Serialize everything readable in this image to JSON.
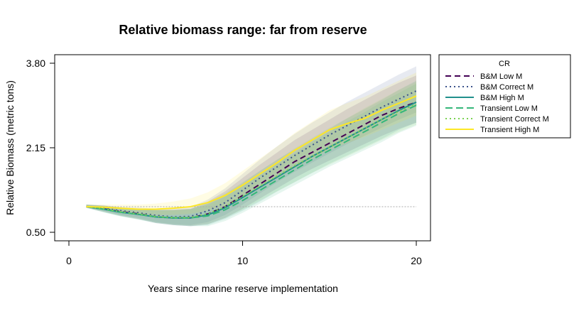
{
  "chart_data": {
    "type": "line",
    "title": "Relative biomass range: far from reserve",
    "xlabel": "Years since marine reserve implementation",
    "ylabel": "Relative Biomass (metric tons)",
    "xlim": [
      0,
      20
    ],
    "ylim": [
      0.5,
      3.8
    ],
    "x_ticks": [
      "0",
      "10",
      "20"
    ],
    "y_ticks": [
      "0.50",
      "2.15",
      "3.80"
    ],
    "reference_line": 1.0,
    "grid": false,
    "legend": {
      "title": "CR",
      "placement": "outside-right"
    },
    "x": [
      1,
      2,
      3,
      4,
      5,
      6,
      7,
      8,
      9,
      10,
      11,
      12,
      13,
      14,
      15,
      16,
      17,
      18,
      19,
      20
    ],
    "series": [
      {
        "name": "B&M Low M",
        "color": "#440154",
        "dash": "dashed",
        "values": [
          1.0,
          0.96,
          0.9,
          0.86,
          0.8,
          0.78,
          0.78,
          0.86,
          1.0,
          1.22,
          1.44,
          1.66,
          1.88,
          2.06,
          2.24,
          2.42,
          2.6,
          2.78,
          2.92,
          3.04
        ],
        "lower": [
          0.98,
          0.9,
          0.82,
          0.76,
          0.68,
          0.64,
          0.62,
          0.66,
          0.78,
          0.96,
          1.16,
          1.36,
          1.56,
          1.74,
          1.9,
          2.06,
          2.22,
          2.38,
          2.52,
          2.64
        ],
        "upper": [
          1.04,
          1.02,
          0.98,
          0.96,
          0.94,
          0.94,
          0.96,
          1.1,
          1.3,
          1.56,
          1.82,
          2.06,
          2.3,
          2.5,
          2.7,
          2.9,
          3.08,
          3.26,
          3.42,
          3.56
        ]
      },
      {
        "name": "B&M Correct M",
        "color": "#3b528b",
        "dash": "dotted",
        "values": [
          1.0,
          0.97,
          0.92,
          0.88,
          0.83,
          0.8,
          0.81,
          0.92,
          1.08,
          1.32,
          1.56,
          1.78,
          2.0,
          2.2,
          2.4,
          2.58,
          2.76,
          2.94,
          3.1,
          3.26
        ],
        "lower": [
          0.98,
          0.92,
          0.84,
          0.78,
          0.7,
          0.66,
          0.64,
          0.7,
          0.84,
          1.04,
          1.26,
          1.48,
          1.68,
          1.86,
          2.04,
          2.22,
          2.38,
          2.54,
          2.7,
          2.84
        ],
        "upper": [
          1.04,
          1.03,
          0.99,
          0.98,
          0.96,
          0.96,
          0.99,
          1.14,
          1.36,
          1.64,
          1.92,
          2.18,
          2.42,
          2.64,
          2.84,
          3.04,
          3.22,
          3.4,
          3.58,
          3.74
        ]
      },
      {
        "name": "B&M High M",
        "color": "#21908c",
        "dash": "solid",
        "values": [
          1.0,
          0.95,
          0.89,
          0.85,
          0.8,
          0.78,
          0.78,
          0.84,
          0.98,
          1.18,
          1.38,
          1.58,
          1.78,
          1.98,
          2.16,
          2.34,
          2.52,
          2.7,
          2.88,
          3.04
        ],
        "lower": [
          0.98,
          0.89,
          0.81,
          0.75,
          0.68,
          0.64,
          0.62,
          0.64,
          0.76,
          0.92,
          1.1,
          1.3,
          1.48,
          1.66,
          1.84,
          2.0,
          2.16,
          2.32,
          2.5,
          2.64
        ],
        "upper": [
          1.04,
          1.01,
          0.97,
          0.95,
          0.93,
          0.93,
          0.95,
          1.06,
          1.24,
          1.46,
          1.7,
          1.92,
          2.12,
          2.32,
          2.52,
          2.72,
          2.9,
          3.08,
          3.28,
          3.46
        ]
      },
      {
        "name": "Transient Low M",
        "color": "#35b779",
        "dash": "longdash",
        "values": [
          1.0,
          0.95,
          0.89,
          0.85,
          0.8,
          0.78,
          0.78,
          0.82,
          0.94,
          1.12,
          1.32,
          1.52,
          1.72,
          1.92,
          2.1,
          2.28,
          2.46,
          2.64,
          2.82,
          2.98
        ],
        "lower": [
          0.98,
          0.89,
          0.81,
          0.75,
          0.68,
          0.64,
          0.62,
          0.62,
          0.72,
          0.88,
          1.06,
          1.24,
          1.42,
          1.6,
          1.78,
          1.94,
          2.1,
          2.26,
          2.44,
          2.58
        ],
        "upper": [
          1.04,
          1.01,
          0.97,
          0.95,
          0.93,
          0.93,
          0.95,
          1.04,
          1.2,
          1.4,
          1.62,
          1.84,
          2.04,
          2.26,
          2.46,
          2.66,
          2.84,
          3.04,
          3.22,
          3.4
        ]
      },
      {
        "name": "Transient Correct M",
        "color": "#7ad151",
        "dash": "dotted",
        "values": [
          1.0,
          0.96,
          0.9,
          0.86,
          0.81,
          0.79,
          0.79,
          0.86,
          1.0,
          1.2,
          1.4,
          1.6,
          1.8,
          1.98,
          2.16,
          2.34,
          2.52,
          2.7,
          2.86,
          3.0
        ],
        "lower": [
          0.98,
          0.9,
          0.82,
          0.76,
          0.69,
          0.65,
          0.63,
          0.66,
          0.78,
          0.94,
          1.12,
          1.3,
          1.48,
          1.66,
          1.82,
          1.98,
          2.14,
          2.3,
          2.46,
          2.6
        ],
        "upper": [
          1.04,
          1.02,
          0.98,
          0.96,
          0.94,
          0.94,
          0.96,
          1.08,
          1.26,
          1.48,
          1.7,
          1.92,
          2.14,
          2.34,
          2.54,
          2.72,
          2.92,
          3.1,
          3.28,
          3.44
        ]
      },
      {
        "name": "Transient High M",
        "color": "#fde725",
        "dash": "solid",
        "values": [
          1.0,
          0.99,
          0.97,
          0.95,
          0.95,
          0.97,
          1.0,
          1.08,
          1.22,
          1.42,
          1.64,
          1.86,
          2.1,
          2.3,
          2.5,
          2.62,
          2.72,
          2.88,
          3.02,
          3.16
        ],
        "lower": [
          0.98,
          0.94,
          0.9,
          0.86,
          0.84,
          0.84,
          0.86,
          0.92,
          1.02,
          1.18,
          1.36,
          1.56,
          1.76,
          1.94,
          2.12,
          2.24,
          2.36,
          2.5,
          2.64,
          2.78
        ],
        "upper": [
          1.04,
          1.04,
          1.04,
          1.04,
          1.06,
          1.1,
          1.16,
          1.28,
          1.46,
          1.7,
          1.94,
          2.18,
          2.44,
          2.66,
          2.88,
          3.02,
          3.14,
          3.3,
          3.46,
          3.62
        ]
      }
    ]
  }
}
